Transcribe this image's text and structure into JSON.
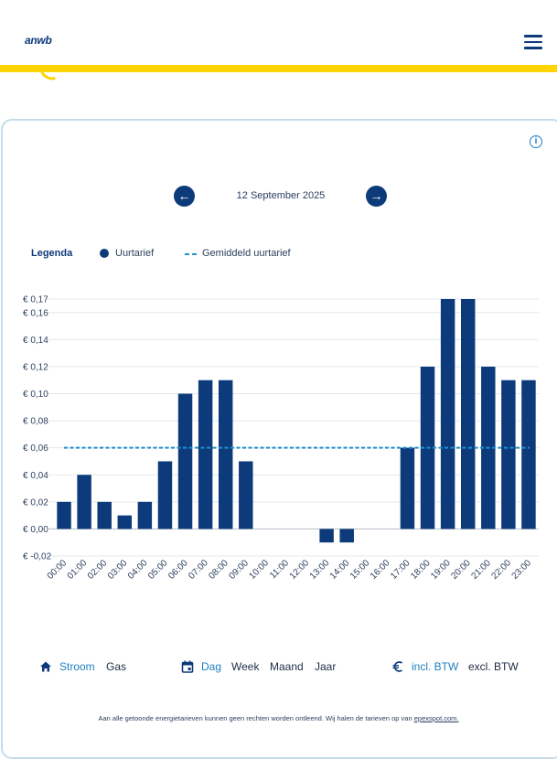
{
  "header": {
    "logo_text": "anwb"
  },
  "date_nav": {
    "date": "12 September 2025"
  },
  "legend": {
    "title": "Legenda",
    "hourly": "Uurtarief",
    "average": "Gemiddeld uurtarief"
  },
  "colors": {
    "bar": "#0d3a7a",
    "average_line": "#1f8fd0",
    "accent": "#1f7fc0",
    "brand_yellow": "#ffd400"
  },
  "chart_data": {
    "type": "bar",
    "categories": [
      "00:00",
      "01:00",
      "02:00",
      "03:00",
      "04:00",
      "05:00",
      "06:00",
      "07:00",
      "08:00",
      "09:00",
      "10:00",
      "11:00",
      "12:00",
      "13:00",
      "14:00",
      "15:00",
      "16:00",
      "17:00",
      "18:00",
      "19:00",
      "20:00",
      "21:00",
      "22:00",
      "23:00"
    ],
    "values": [
      0.02,
      0.04,
      0.02,
      0.01,
      0.02,
      0.05,
      0.1,
      0.11,
      0.11,
      0.05,
      0,
      0,
      0,
      -0.01,
      -0.01,
      0,
      0,
      0.06,
      0.12,
      0.17,
      0.17,
      0.12,
      0.11,
      0.11
    ],
    "average": 0.06,
    "yticks": [
      -0.02,
      0,
      0.02,
      0.04,
      0.06,
      0.08,
      0.1,
      0.12,
      0.14,
      0.16,
      0.17
    ],
    "ytick_labels": [
      "€ -0,02",
      "€ 0,00",
      "€ 0,02",
      "€ 0,04",
      "€ 0,06",
      "€ 0,08",
      "€ 0,10",
      "€ 0,12",
      "€ 0,14",
      "€ 0,16",
      "€ 0,17"
    ],
    "ylim": [
      -0.02,
      0.17
    ],
    "grid": true
  },
  "controls": {
    "energy": {
      "stroom": "Stroom",
      "gas": "Gas",
      "icon": "home-icon"
    },
    "period": {
      "dag": "Dag",
      "week": "Week",
      "maand": "Maand",
      "jaar": "Jaar",
      "icon": "calendar-icon"
    },
    "tax": {
      "incl": "incl. BTW",
      "excl": "excl. BTW",
      "icon": "euro-icon"
    }
  },
  "footer": {
    "text": "Aan alle getoonde energietarieven kunnen geen rechten worden ontleend. Wij halen de tarieven op van ",
    "link": "epexspot.com."
  }
}
